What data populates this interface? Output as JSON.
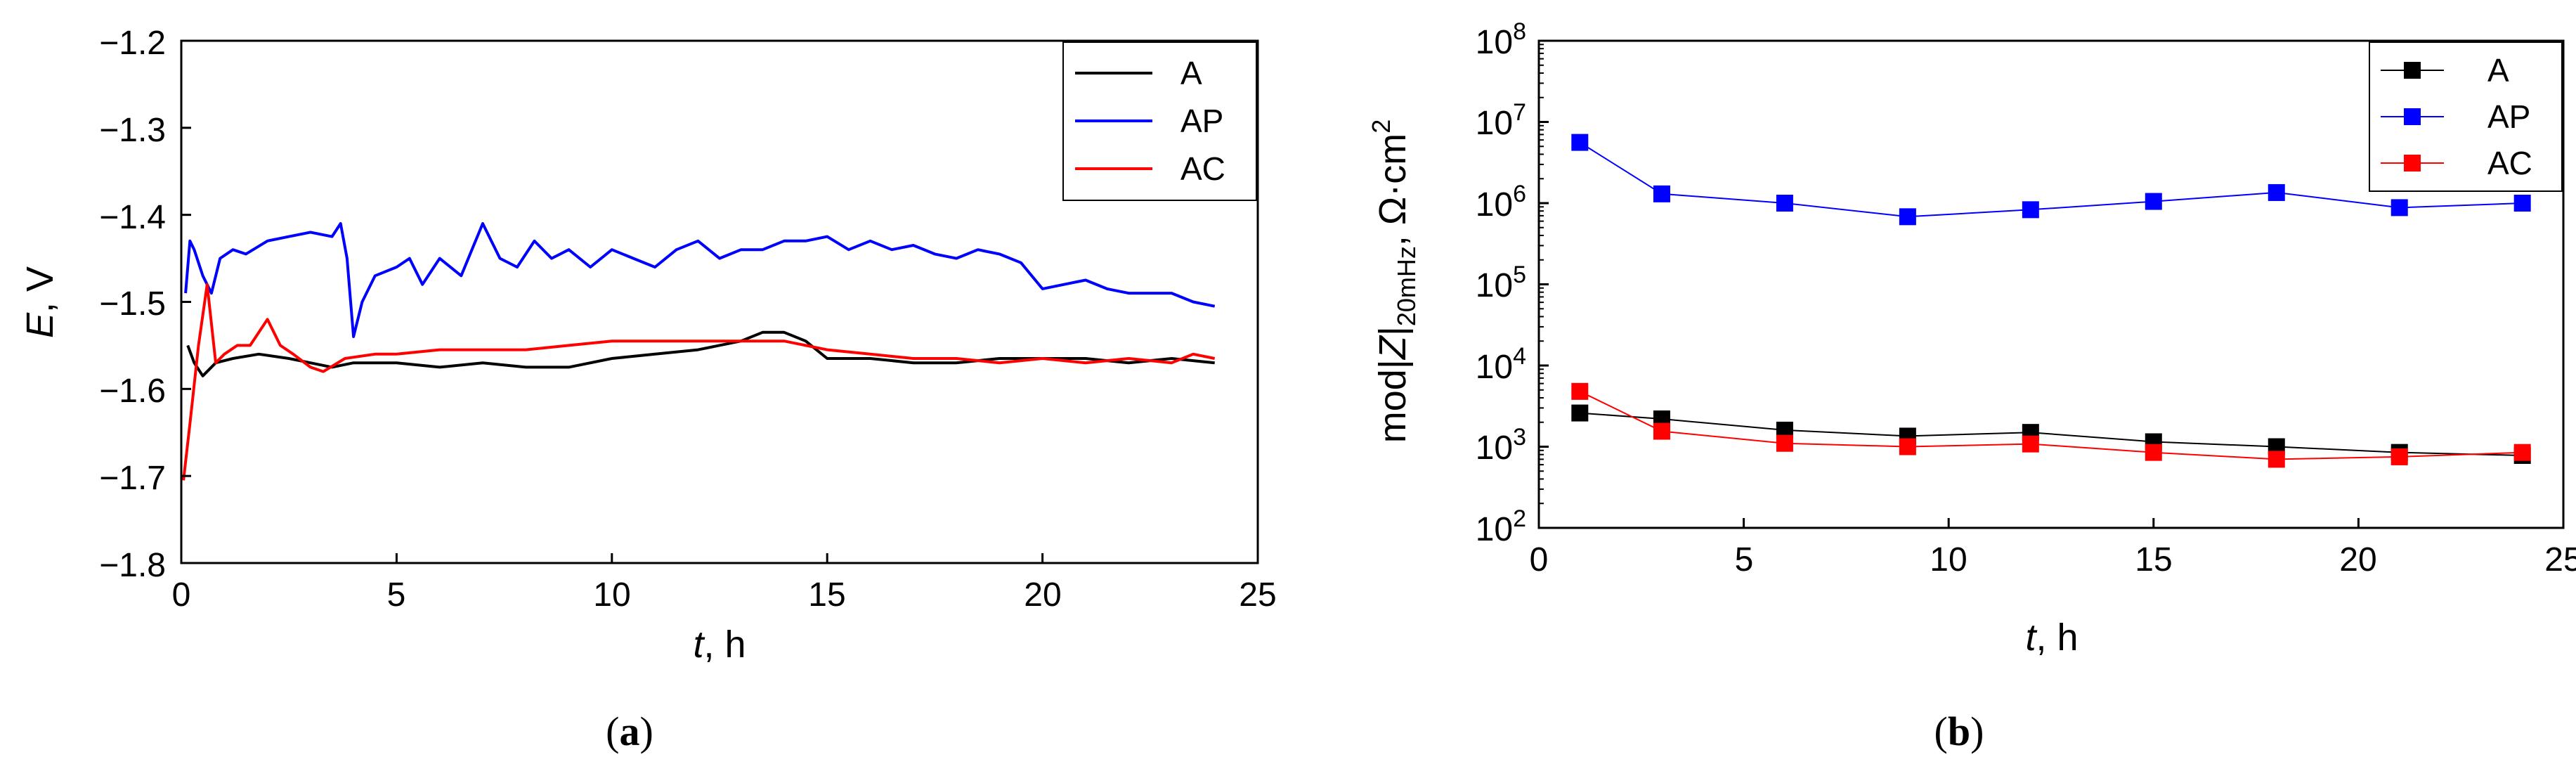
{
  "chart_data": [
    {
      "type": "line",
      "panel": "(a)",
      "caption": {
        "open": "(",
        "letter": "a",
        "close": ")"
      },
      "xlabel": {
        "var": "t",
        "unit": ", h"
      },
      "ylabel": {
        "var": "E",
        "unit": ", V"
      },
      "xlim": [
        0,
        25
      ],
      "ylim": [
        -1.8,
        -1.2
      ],
      "xticks": [
        0,
        5,
        10,
        15,
        20,
        25
      ],
      "xtick_labels": [
        "0",
        "5",
        "10",
        "15",
        "20",
        "25"
      ],
      "yticks": [
        -1.8,
        -1.7,
        -1.6,
        -1.5,
        -1.4,
        -1.3,
        -1.2
      ],
      "ytick_labels": [
        "−1.8",
        "−1.7",
        "−1.6",
        "−1.5",
        "−1.4",
        "−1.3",
        "−1.2"
      ],
      "grid": false,
      "legend_position": "top-right",
      "series": [
        {
          "name": "A",
          "color": "#000000",
          "x": [
            0.15,
            0.3,
            0.5,
            0.8,
            1.2,
            1.8,
            2.5,
            3.0,
            3.5,
            4.0,
            5.0,
            6.0,
            7.0,
            8.0,
            9.0,
            10.0,
            11.0,
            12.0,
            13.0,
            13.5,
            14.0,
            14.5,
            15.0,
            16.0,
            17.0,
            18.0,
            19.0,
            20.0,
            21.0,
            22.0,
            23.0,
            24.0
          ],
          "y": [
            -1.55,
            -1.57,
            -1.585,
            -1.57,
            -1.565,
            -1.56,
            -1.565,
            -1.57,
            -1.575,
            -1.57,
            -1.57,
            -1.575,
            -1.57,
            -1.575,
            -1.575,
            -1.565,
            -1.56,
            -1.555,
            -1.545,
            -1.535,
            -1.535,
            -1.545,
            -1.565,
            -1.565,
            -1.57,
            -1.57,
            -1.565,
            -1.565,
            -1.565,
            -1.57,
            -1.565,
            -1.57
          ]
        },
        {
          "name": "AP",
          "color": "#0000ff",
          "x": [
            0.1,
            0.2,
            0.3,
            0.5,
            0.7,
            0.9,
            1.2,
            1.5,
            2.0,
            2.5,
            3.0,
            3.5,
            3.7,
            3.85,
            4.0,
            4.2,
            4.5,
            5.0,
            5.3,
            5.6,
            6.0,
            6.5,
            7.0,
            7.4,
            7.8,
            8.2,
            8.6,
            9.0,
            9.5,
            10.0,
            10.5,
            11.0,
            11.5,
            12.0,
            12.5,
            13.0,
            13.5,
            14.0,
            14.5,
            15.0,
            15.5,
            16.0,
            16.5,
            17.0,
            17.5,
            18.0,
            18.5,
            19.0,
            19.5,
            20.0,
            20.5,
            21.0,
            21.5,
            22.0,
            22.5,
            23.0,
            23.5,
            24.0
          ],
          "y": [
            -1.49,
            -1.43,
            -1.44,
            -1.47,
            -1.49,
            -1.45,
            -1.44,
            -1.445,
            -1.43,
            -1.425,
            -1.42,
            -1.425,
            -1.41,
            -1.45,
            -1.54,
            -1.5,
            -1.47,
            -1.46,
            -1.45,
            -1.48,
            -1.45,
            -1.47,
            -1.41,
            -1.45,
            -1.46,
            -1.43,
            -1.45,
            -1.44,
            -1.46,
            -1.44,
            -1.45,
            -1.46,
            -1.44,
            -1.43,
            -1.45,
            -1.44,
            -1.44,
            -1.43,
            -1.43,
            -1.425,
            -1.44,
            -1.43,
            -1.44,
            -1.435,
            -1.445,
            -1.45,
            -1.44,
            -1.445,
            -1.455,
            -1.485,
            -1.48,
            -1.475,
            -1.485,
            -1.49,
            -1.49,
            -1.49,
            -1.5,
            -1.505
          ]
        },
        {
          "name": "AC",
          "color": "#ff0000",
          "x": [
            0.05,
            0.2,
            0.4,
            0.6,
            0.8,
            1.0,
            1.3,
            1.6,
            2.0,
            2.3,
            2.6,
            3.0,
            3.3,
            3.8,
            4.5,
            5.0,
            6.0,
            7.0,
            8.0,
            9.0,
            10.0,
            11.0,
            12.0,
            13.0,
            14.0,
            15.0,
            16.0,
            17.0,
            18.0,
            19.0,
            20.0,
            21.0,
            22.0,
            23.0,
            23.5,
            24.0
          ],
          "y": [
            -1.705,
            -1.64,
            -1.55,
            -1.48,
            -1.57,
            -1.56,
            -1.55,
            -1.55,
            -1.52,
            -1.55,
            -1.56,
            -1.575,
            -1.58,
            -1.565,
            -1.56,
            -1.56,
            -1.555,
            -1.555,
            -1.555,
            -1.55,
            -1.545,
            -1.545,
            -1.545,
            -1.545,
            -1.545,
            -1.555,
            -1.56,
            -1.565,
            -1.565,
            -1.57,
            -1.565,
            -1.57,
            -1.565,
            -1.57,
            -1.56,
            -1.565
          ]
        }
      ]
    },
    {
      "type": "line",
      "panel": "(b)",
      "caption": {
        "open": "(",
        "letter": "b",
        "close": ")"
      },
      "xlabel": {
        "var": "t",
        "unit": ", h"
      },
      "ylabel": {
        "pre": "mod|",
        "var": "Z",
        "post": "|",
        "sub": "20mHz",
        "unit": ", Ω·cm",
        "sup": "2"
      },
      "xlim": [
        0,
        25
      ],
      "ylim": [
        100,
        100000000
      ],
      "yscale": "log",
      "xticks": [
        0,
        5,
        10,
        15,
        20,
        25
      ],
      "xtick_labels": [
        "0",
        "5",
        "10",
        "15",
        "20",
        "25"
      ],
      "ytick_exponents": [
        2,
        3,
        4,
        5,
        6,
        7,
        8
      ],
      "ytick_base": "10",
      "ytick_exp_labels": [
        "2",
        "3",
        "4",
        "5",
        "6",
        "7",
        "8"
      ],
      "grid": false,
      "legend_position": "top-right",
      "x": [
        1,
        3,
        6,
        9,
        12,
        15,
        18,
        21,
        24
      ],
      "series": [
        {
          "name": "A",
          "color": "#000000",
          "values": [
            2600,
            2200,
            1600,
            1350,
            1500,
            1150,
            1000,
            850,
            780
          ]
        },
        {
          "name": "AP",
          "color": "#0000ff",
          "values": [
            5600000,
            1300000,
            1000000,
            680000,
            830000,
            1050000,
            1350000,
            880000,
            1000000
          ]
        },
        {
          "name": "AC",
          "color": "#ff0000",
          "values": [
            4800,
            1550,
            1100,
            1000,
            1080,
            850,
            700,
            750,
            850
          ]
        }
      ]
    }
  ]
}
